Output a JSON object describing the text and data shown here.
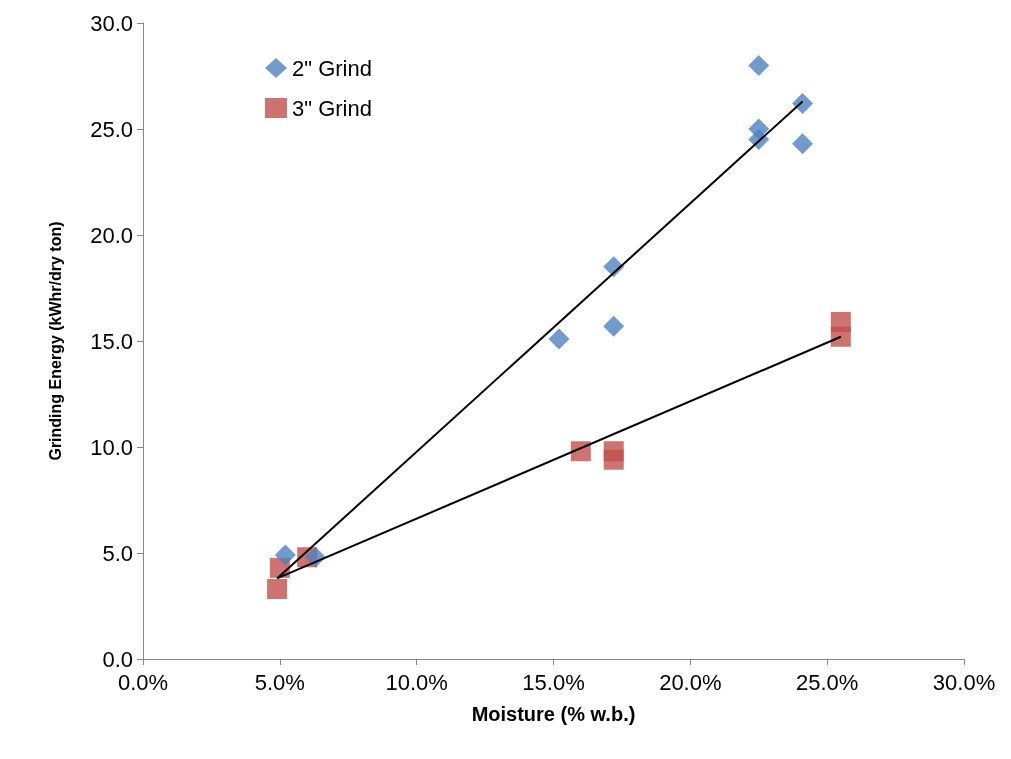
{
  "chart_data": {
    "type": "scatter",
    "xlabel": "Moisture (% w.b.)",
    "ylabel": "Grinding Energy (kWhr/dry ton)",
    "xlim": [
      0,
      30
    ],
    "xticks": [
      {
        "value": 0,
        "label": "0.0%"
      },
      {
        "value": 5,
        "label": "5.0%"
      },
      {
        "value": 10,
        "label": "10.0%"
      },
      {
        "value": 15,
        "label": "15.0%"
      },
      {
        "value": 20,
        "label": "20.0%"
      },
      {
        "value": 25,
        "label": "25.0%"
      },
      {
        "value": 30,
        "label": "30.0%"
      }
    ],
    "ylim": [
      0,
      30
    ],
    "yticks": [
      {
        "value": 0,
        "label": "0.0"
      },
      {
        "value": 5,
        "label": "5.0"
      },
      {
        "value": 10,
        "label": "10.0"
      },
      {
        "value": 15,
        "label": "15.0"
      },
      {
        "value": 20,
        "label": "20.0"
      },
      {
        "value": 25,
        "label": "25.0"
      },
      {
        "value": 30,
        "label": "30.0"
      }
    ],
    "grid": false,
    "legend": "top left",
    "series": [
      {
        "name": "2\" Grind",
        "color": "#4f81bd",
        "marker": "diamond",
        "x": [
          5.2,
          6.3,
          15.2,
          17.2,
          17.2,
          22.5,
          22.5,
          22.5,
          24.1,
          24.1
        ],
        "values": [
          4.9,
          4.8,
          15.1,
          15.7,
          18.5,
          28.0,
          25.0,
          24.5,
          24.3,
          26.2
        ]
      },
      {
        "name": "3\" Grind",
        "color": "#c0504d",
        "marker": "square",
        "x": [
          4.9,
          5.0,
          6.0,
          16.0,
          17.2,
          17.2,
          25.5,
          25.5
        ],
        "values": [
          3.3,
          4.3,
          4.8,
          9.8,
          9.8,
          9.4,
          15.9,
          15.2
        ]
      },
      {
        "type": "line",
        "color": "#000000",
        "marker": "none",
        "x": [
          4.9,
          24.1
        ],
        "values": [
          3.8,
          26.3
        ]
      },
      {
        "type": "line",
        "color": "#000000",
        "marker": "none",
        "x": [
          4.9,
          25.5
        ],
        "values": [
          3.8,
          15.2
        ]
      }
    ]
  }
}
